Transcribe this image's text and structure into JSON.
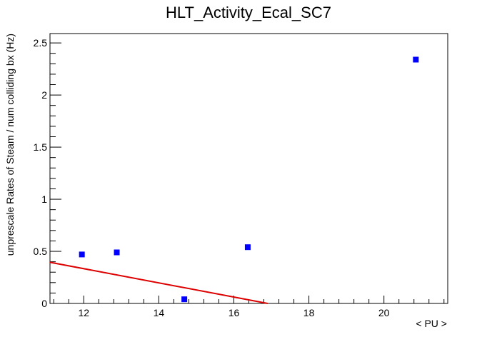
{
  "chart_data": {
    "type": "scatter",
    "title": "HLT_Activity_Ecal_SC7",
    "xlabel": "< PU >",
    "ylabel": "unprescale Rates of Steam / num colliding bx (Hz)",
    "xlim": [
      11.1,
      21.7
    ],
    "ylim": [
      0,
      2.59
    ],
    "x_ticks": [
      12,
      14,
      16,
      18,
      20
    ],
    "x_tick_labels": [
      "12",
      "14",
      "16",
      "18",
      "20"
    ],
    "y_ticks": [
      0,
      0.5,
      1,
      1.5,
      2,
      2.5
    ],
    "y_tick_labels": [
      "0",
      "0.5",
      "1",
      "1.5",
      "2",
      "2.5"
    ],
    "series": [
      {
        "kind": "points",
        "color": "#0000ff",
        "marker": "square",
        "x": [
          11.95,
          12.88,
          14.68,
          16.37,
          20.85
        ],
        "y": [
          0.47,
          0.49,
          0.04,
          0.54,
          2.34
        ]
      },
      {
        "kind": "line",
        "color": "#dd0000",
        "x": [
          11.1,
          16.9
        ],
        "y": [
          0.395,
          0.0
        ]
      }
    ],
    "grid": false,
    "legend": "none"
  }
}
